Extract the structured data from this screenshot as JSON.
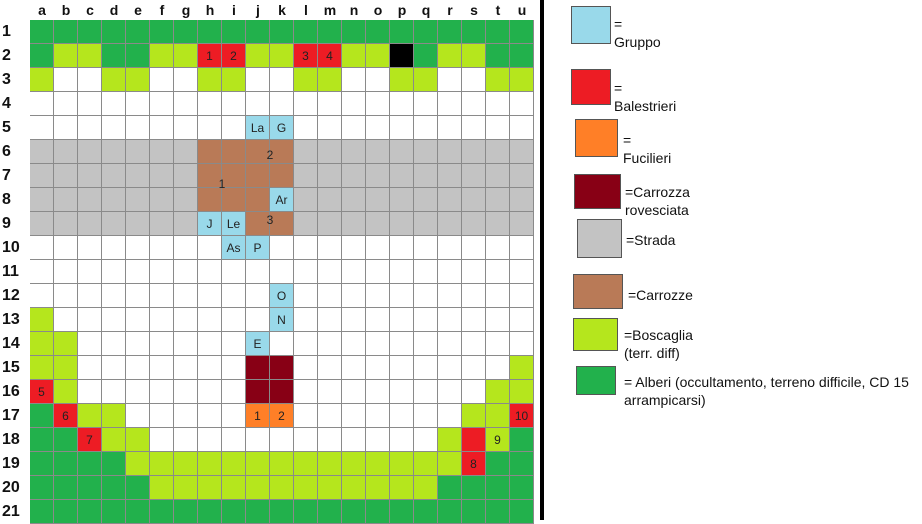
{
  "colors": {
    "white": "#ffffff",
    "tree": "#22b14c",
    "bush": "#b5e61d",
    "road": "#c3c3c3",
    "cart": "#b97a57",
    "group": "#99d9ea",
    "crossbow": "#ed1c24",
    "rifle": "#ff7f27",
    "overturned": "#880015",
    "black": "#000000"
  },
  "grid": {
    "columns": [
      "a",
      "b",
      "c",
      "d",
      "e",
      "f",
      "g",
      "h",
      "i",
      "j",
      "k",
      "l",
      "m",
      "n",
      "o",
      "p",
      "q",
      "r",
      "s",
      "t",
      "u"
    ],
    "rows": [
      "1",
      "2",
      "3",
      "4",
      "5",
      "6",
      "7",
      "8",
      "9",
      "10",
      "11",
      "12",
      "13",
      "14",
      "15",
      "16",
      "17",
      "18",
      "19",
      "20",
      "21"
    ],
    "cells": [
      "TTTTTTTTTTTTTTTTTTTTT",
      "TBBTTBBRRBBRRBBXTBBTT",
      "BWWBBWWBBWWBBWWBBWWBB",
      "WWWWWWWWWWWWWWWWWWWWW",
      "WWWWWWWWWGGWWWWWWWWWW",
      "SSSSSSSCCCCSSSSSSSSSS",
      "SSSSSSSCCCCSSSSSSSSSS",
      "SSSSSSSCCCGSSSSSSSSSS",
      "SSSSSSSGGCCSSSSSSSSSS",
      "WWWWWWWWGGWWWWWWWWWWW",
      "WWWWWWWWWWWWWWWWWWWWW",
      "WWWWWWWWWWGWWWWWWWWWW",
      "BWWWWWWWWWGWWWWWWWWWW",
      "BBWWWWWWWGWWWWWWWWWWW",
      "BBWWWWWWWVVWWWWWWWWWB",
      "RBWWWWWWWVVWWWWWWWWBB",
      "TRBBWWWWWFFWWWWWWWBBR",
      "TTRBBWWWWWWWWWWWWBRBT",
      "TTTTBBBBBBBBBBBBBBRTT",
      "TTTTTBBBBBBBBBBBBTTTT",
      "TTTTTTTTTTTTTTTTTTTTT"
    ],
    "labels": [
      {
        "col": 7,
        "row": 1,
        "text": "1"
      },
      {
        "col": 8,
        "row": 1,
        "text": "2"
      },
      {
        "col": 11,
        "row": 1,
        "text": "3"
      },
      {
        "col": 12,
        "row": 1,
        "text": "4"
      },
      {
        "col": 9,
        "row": 4,
        "text": "La"
      },
      {
        "col": 10,
        "row": 4,
        "text": "G"
      },
      {
        "col": 10,
        "row": 7,
        "text": "Ar"
      },
      {
        "col": 7,
        "row": 8,
        "text": "J"
      },
      {
        "col": 8,
        "row": 8,
        "text": "Le"
      },
      {
        "col": 8,
        "row": 9,
        "text": "As"
      },
      {
        "col": 9,
        "row": 9,
        "text": "P"
      },
      {
        "col": 10,
        "row": 11,
        "text": "O"
      },
      {
        "col": 10,
        "row": 12,
        "text": "N"
      },
      {
        "col": 9,
        "row": 13,
        "text": "E"
      },
      {
        "col": 0,
        "row": 15,
        "text": "5"
      },
      {
        "col": 1,
        "row": 16,
        "text": "6"
      },
      {
        "col": 9,
        "row": 16,
        "text": "1"
      },
      {
        "col": 10,
        "row": 16,
        "text": "2"
      },
      {
        "col": 20,
        "row": 16,
        "text": "10"
      },
      {
        "col": 2,
        "row": 17,
        "text": "7"
      },
      {
        "col": 19,
        "row": 17,
        "text": "9"
      },
      {
        "col": 18,
        "row": 18,
        "text": "8"
      }
    ],
    "free_labels": [
      {
        "col": 10,
        "row": 5.62,
        "text": "2"
      },
      {
        "col": 8,
        "row": 6.82,
        "text": "1"
      },
      {
        "col": 10,
        "row": 8.32,
        "text": "3"
      }
    ]
  },
  "legend": [
    {
      "key": "group",
      "label": "= Gruppo"
    },
    {
      "key": "crossbow",
      "label": "= Balestrieri"
    },
    {
      "key": "rifle",
      "label": "= Fucilieri"
    },
    {
      "key": "overturned",
      "label": "=Carrozza rovesciata"
    },
    {
      "key": "road",
      "label": "=Strada"
    },
    {
      "key": "cart",
      "label": "=Carrozze"
    },
    {
      "key": "bush",
      "label": "=Boscaglia (terr. diff)"
    },
    {
      "key": "tree",
      "label": "= Alberi (occultamento, terreno difficile, CD 15 arrampicarsi)"
    }
  ]
}
